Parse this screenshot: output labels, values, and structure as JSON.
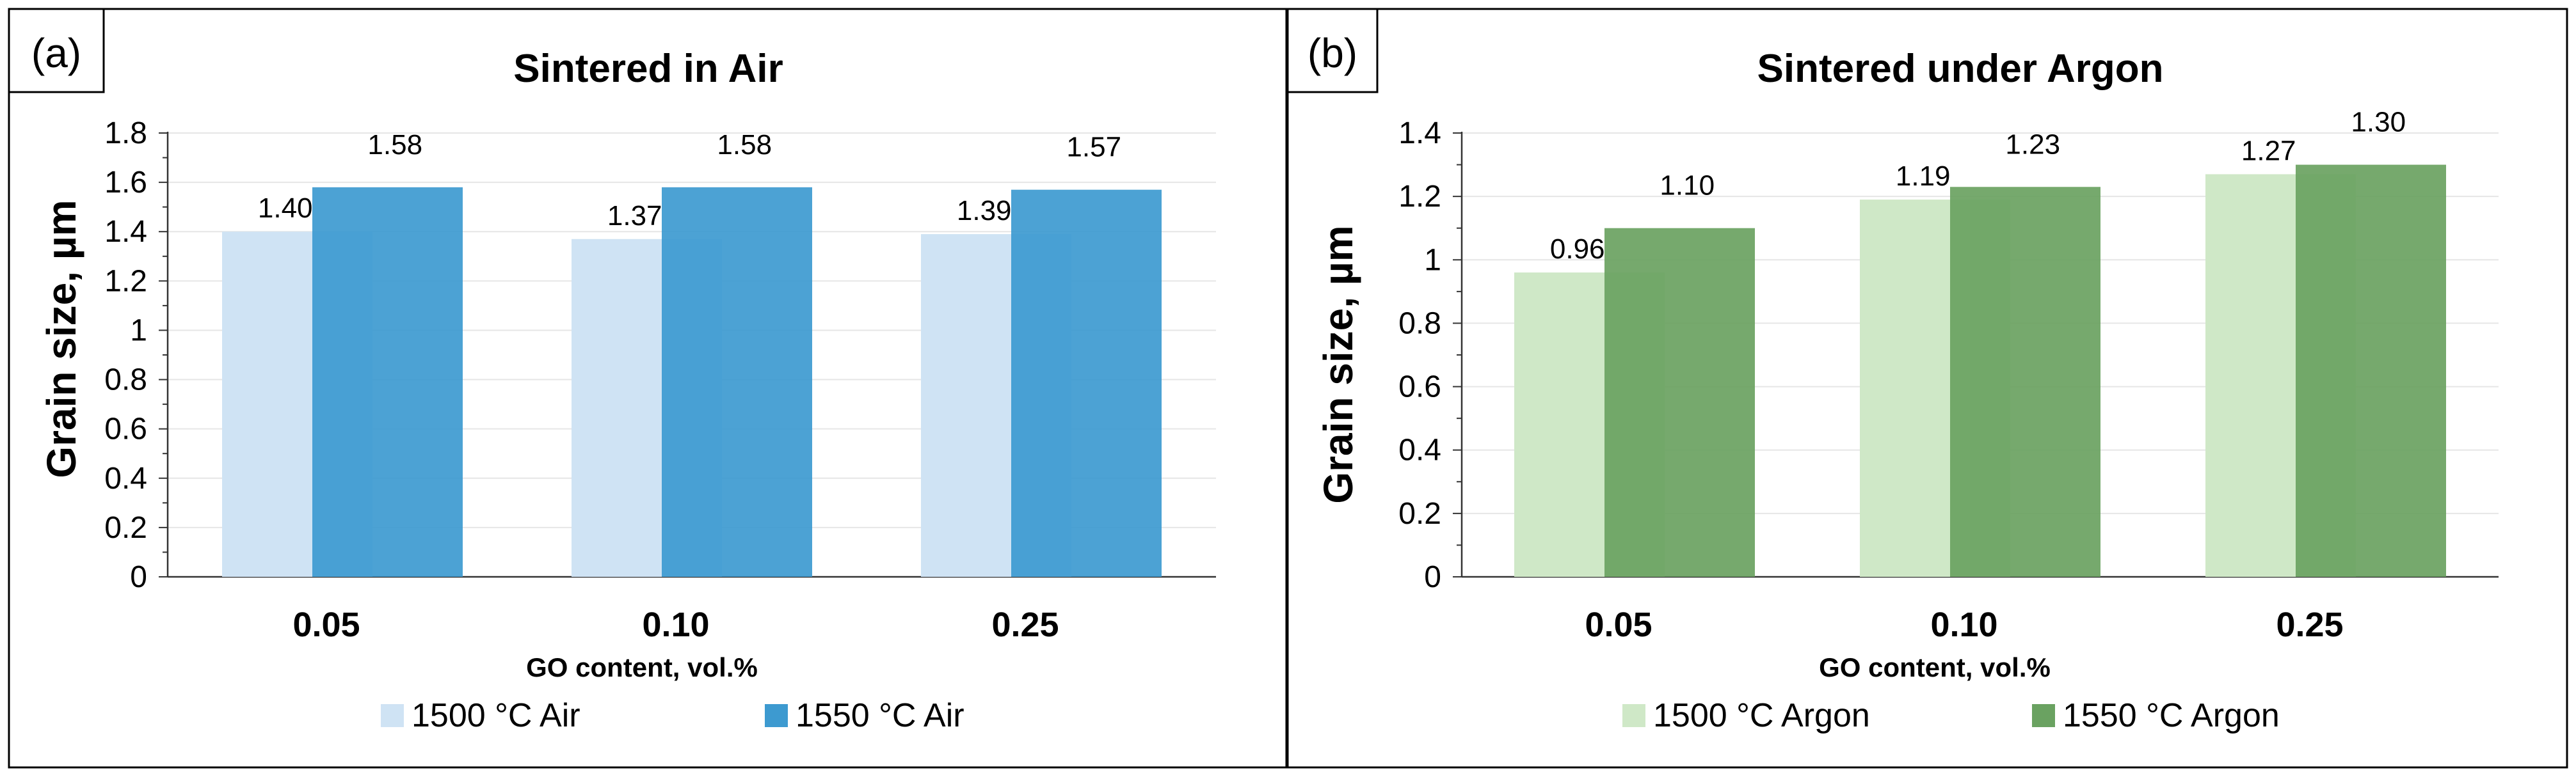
{
  "chart_data": [
    {
      "type": "bar",
      "panel_label": "(a)",
      "title": "Sintered in Air",
      "xlabel": "GO content, vol.%",
      "ylabel": "Grain size, µm",
      "ylim": [
        0,
        1.8
      ],
      "yticks": [
        "0",
        "0.2",
        "0.4",
        "0.6",
        "0.8",
        "1",
        "1.2",
        "1.4",
        "1.6",
        "1.8"
      ],
      "categories": [
        "0.05",
        "0.10",
        "0.25"
      ],
      "series": [
        {
          "name": "1500 °C Air",
          "color": "#cfe3f4",
          "values": [
            1.4,
            1.37,
            1.39
          ],
          "labels": [
            "1.40",
            "1.37",
            "1.39"
          ]
        },
        {
          "name": "1550 °C Air",
          "color": "#3d9ad0",
          "values": [
            1.58,
            1.58,
            1.57
          ],
          "labels": [
            "1.58",
            "1.58",
            "1.57"
          ]
        }
      ],
      "legend": "bottom"
    },
    {
      "type": "bar",
      "panel_label": "(b)",
      "title": "Sintered under Argon",
      "xlabel": "GO content, vol.%",
      "ylabel": "Grain size, µm",
      "ylim": [
        0,
        1.4
      ],
      "yticks": [
        "0",
        "0.2",
        "0.4",
        "0.6",
        "0.8",
        "1",
        "1.2",
        "1.4"
      ],
      "categories": [
        "0.05",
        "0.10",
        "0.25"
      ],
      "series": [
        {
          "name": "1500 °C Argon",
          "color": "#cfe8c7",
          "values": [
            0.96,
            1.19,
            1.27
          ],
          "labels": [
            "0.96",
            "1.19",
            "1.27"
          ]
        },
        {
          "name": "1550 °C Argon",
          "color": "#6aa261",
          "values": [
            1.1,
            1.23,
            1.3
          ],
          "labels": [
            "1.10",
            "1.23",
            "1.30"
          ]
        }
      ],
      "legend": "bottom"
    }
  ]
}
